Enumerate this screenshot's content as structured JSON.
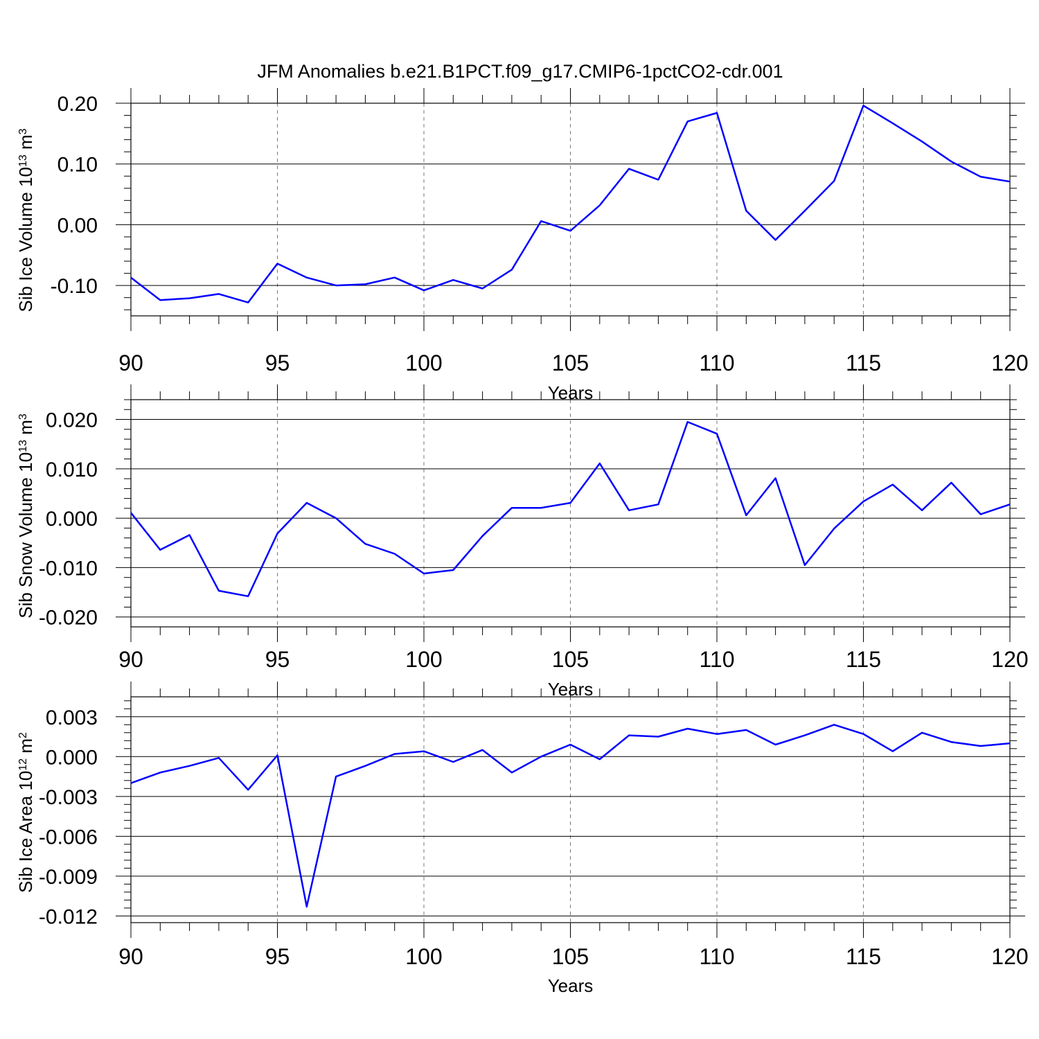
{
  "title": "JFM Anomalies b.e21.B1PCT.f09_g17.CMIP6-1pctCO2-cdr.001",
  "chart_data": [
    {
      "type": "line",
      "ylabel": "Sib Ice Volume 10",
      "ylabel_exp": "13",
      "ylabel_unit": " m",
      "ylabel_unit_exp": "3",
      "xlabel": "Years",
      "xlim": [
        90,
        120
      ],
      "ylim": [
        -0.15,
        0.2
      ],
      "yticks": [
        -0.1,
        0.0,
        0.1,
        0.2
      ],
      "ytick_labels": [
        "-0.10",
        "0.00",
        "0.10",
        "0.20"
      ],
      "xticks": [
        90,
        95,
        100,
        105,
        110,
        115,
        120
      ],
      "xtick_labels": [
        "90",
        "95",
        "100",
        "105",
        "110",
        "115",
        "120"
      ],
      "grid_vertical": true,
      "grid_horizontal": true,
      "color": "#0000ff",
      "series": [
        {
          "name": "Sib Ice Volume",
          "x": [
            90,
            91,
            92,
            93,
            94,
            95,
            96,
            97,
            98,
            99,
            100,
            101,
            102,
            103,
            104,
            105,
            106,
            107,
            108,
            109,
            110,
            111,
            112,
            113,
            114,
            115,
            116,
            117,
            118,
            119,
            120
          ],
          "values": [
            -0.087,
            -0.124,
            -0.121,
            -0.114,
            -0.128,
            -0.064,
            -0.087,
            -0.1,
            -0.098,
            -0.087,
            -0.108,
            -0.091,
            -0.105,
            -0.074,
            0.006,
            -0.01,
            0.032,
            0.092,
            0.074,
            0.17,
            0.184,
            0.023,
            -0.025,
            0.023,
            0.072,
            0.196,
            0.167,
            0.137,
            0.104,
            0.079,
            0.071
          ]
        }
      ]
    },
    {
      "type": "line",
      "ylabel": "Sib Snow Volume 10",
      "ylabel_exp": "13",
      "ylabel_unit": " m",
      "ylabel_unit_exp": "3",
      "xlabel": "Years",
      "xlim": [
        90,
        120
      ],
      "ylim": [
        -0.022,
        0.024
      ],
      "yticks": [
        -0.02,
        -0.01,
        0.0,
        0.01,
        0.02
      ],
      "ytick_labels": [
        "-0.020",
        "-0.010",
        "0.000",
        "0.010",
        "0.020"
      ],
      "xticks": [
        90,
        95,
        100,
        105,
        110,
        115,
        120
      ],
      "xtick_labels": [
        "90",
        "95",
        "100",
        "105",
        "110",
        "115",
        "120"
      ],
      "grid_vertical": true,
      "grid_horizontal": true,
      "color": "#0000ff",
      "series": [
        {
          "name": "Sib Snow Volume",
          "x": [
            90,
            91,
            92,
            93,
            94,
            95,
            96,
            97,
            98,
            99,
            100,
            101,
            102,
            103,
            104,
            105,
            106,
            107,
            108,
            109,
            110,
            111,
            112,
            113,
            114,
            115,
            116,
            117,
            118,
            119,
            120
          ],
          "values": [
            0.0011,
            -0.0064,
            -0.0034,
            -0.0147,
            -0.0158,
            -0.0031,
            0.0031,
            0.0,
            -0.0052,
            -0.0072,
            -0.0112,
            -0.0105,
            -0.0036,
            0.0021,
            0.0021,
            0.0031,
            0.0111,
            0.0016,
            0.0028,
            0.0195,
            0.0171,
            0.0006,
            0.0081,
            -0.0095,
            -0.0021,
            0.0034,
            0.0068,
            0.0016,
            0.0072,
            0.0008,
            0.0028
          ]
        }
      ]
    },
    {
      "type": "line",
      "ylabel": "Sib Ice Area 10",
      "ylabel_exp": "12",
      "ylabel_unit": " m",
      "ylabel_unit_exp": "2",
      "xlabel": "Years",
      "xlim": [
        90,
        120
      ],
      "ylim": [
        -0.0125,
        0.0045
      ],
      "yticks": [
        -0.012,
        -0.009,
        -0.006,
        -0.003,
        0.0,
        0.003
      ],
      "ytick_labels": [
        "-0.012",
        "-0.009",
        "-0.006",
        "-0.003",
        "0.000",
        "0.003"
      ],
      "xticks": [
        90,
        95,
        100,
        105,
        110,
        115,
        120
      ],
      "xtick_labels": [
        "90",
        "95",
        "100",
        "105",
        "110",
        "115",
        "120"
      ],
      "grid_vertical": true,
      "grid_horizontal": true,
      "color": "#0000ff",
      "series": [
        {
          "name": "Sib Ice Area",
          "x": [
            90,
            91,
            92,
            93,
            94,
            95,
            96,
            97,
            98,
            99,
            100,
            101,
            102,
            103,
            104,
            105,
            106,
            107,
            108,
            109,
            110,
            111,
            112,
            113,
            114,
            115,
            116,
            117,
            118,
            119,
            120
          ],
          "values": [
            -0.002,
            -0.0012,
            -0.0007,
            -0.0001,
            -0.0025,
            0.0001,
            -0.0113,
            -0.0015,
            -0.0007,
            0.0002,
            0.0004,
            -0.0004,
            0.0005,
            -0.0012,
            0.0,
            0.0009,
            -0.0002,
            0.0016,
            0.0015,
            0.0021,
            0.0017,
            0.002,
            0.0009,
            0.0016,
            0.0024,
            0.0017,
            0.0004,
            0.0018,
            0.0011,
            0.0008,
            0.001
          ]
        }
      ]
    }
  ]
}
